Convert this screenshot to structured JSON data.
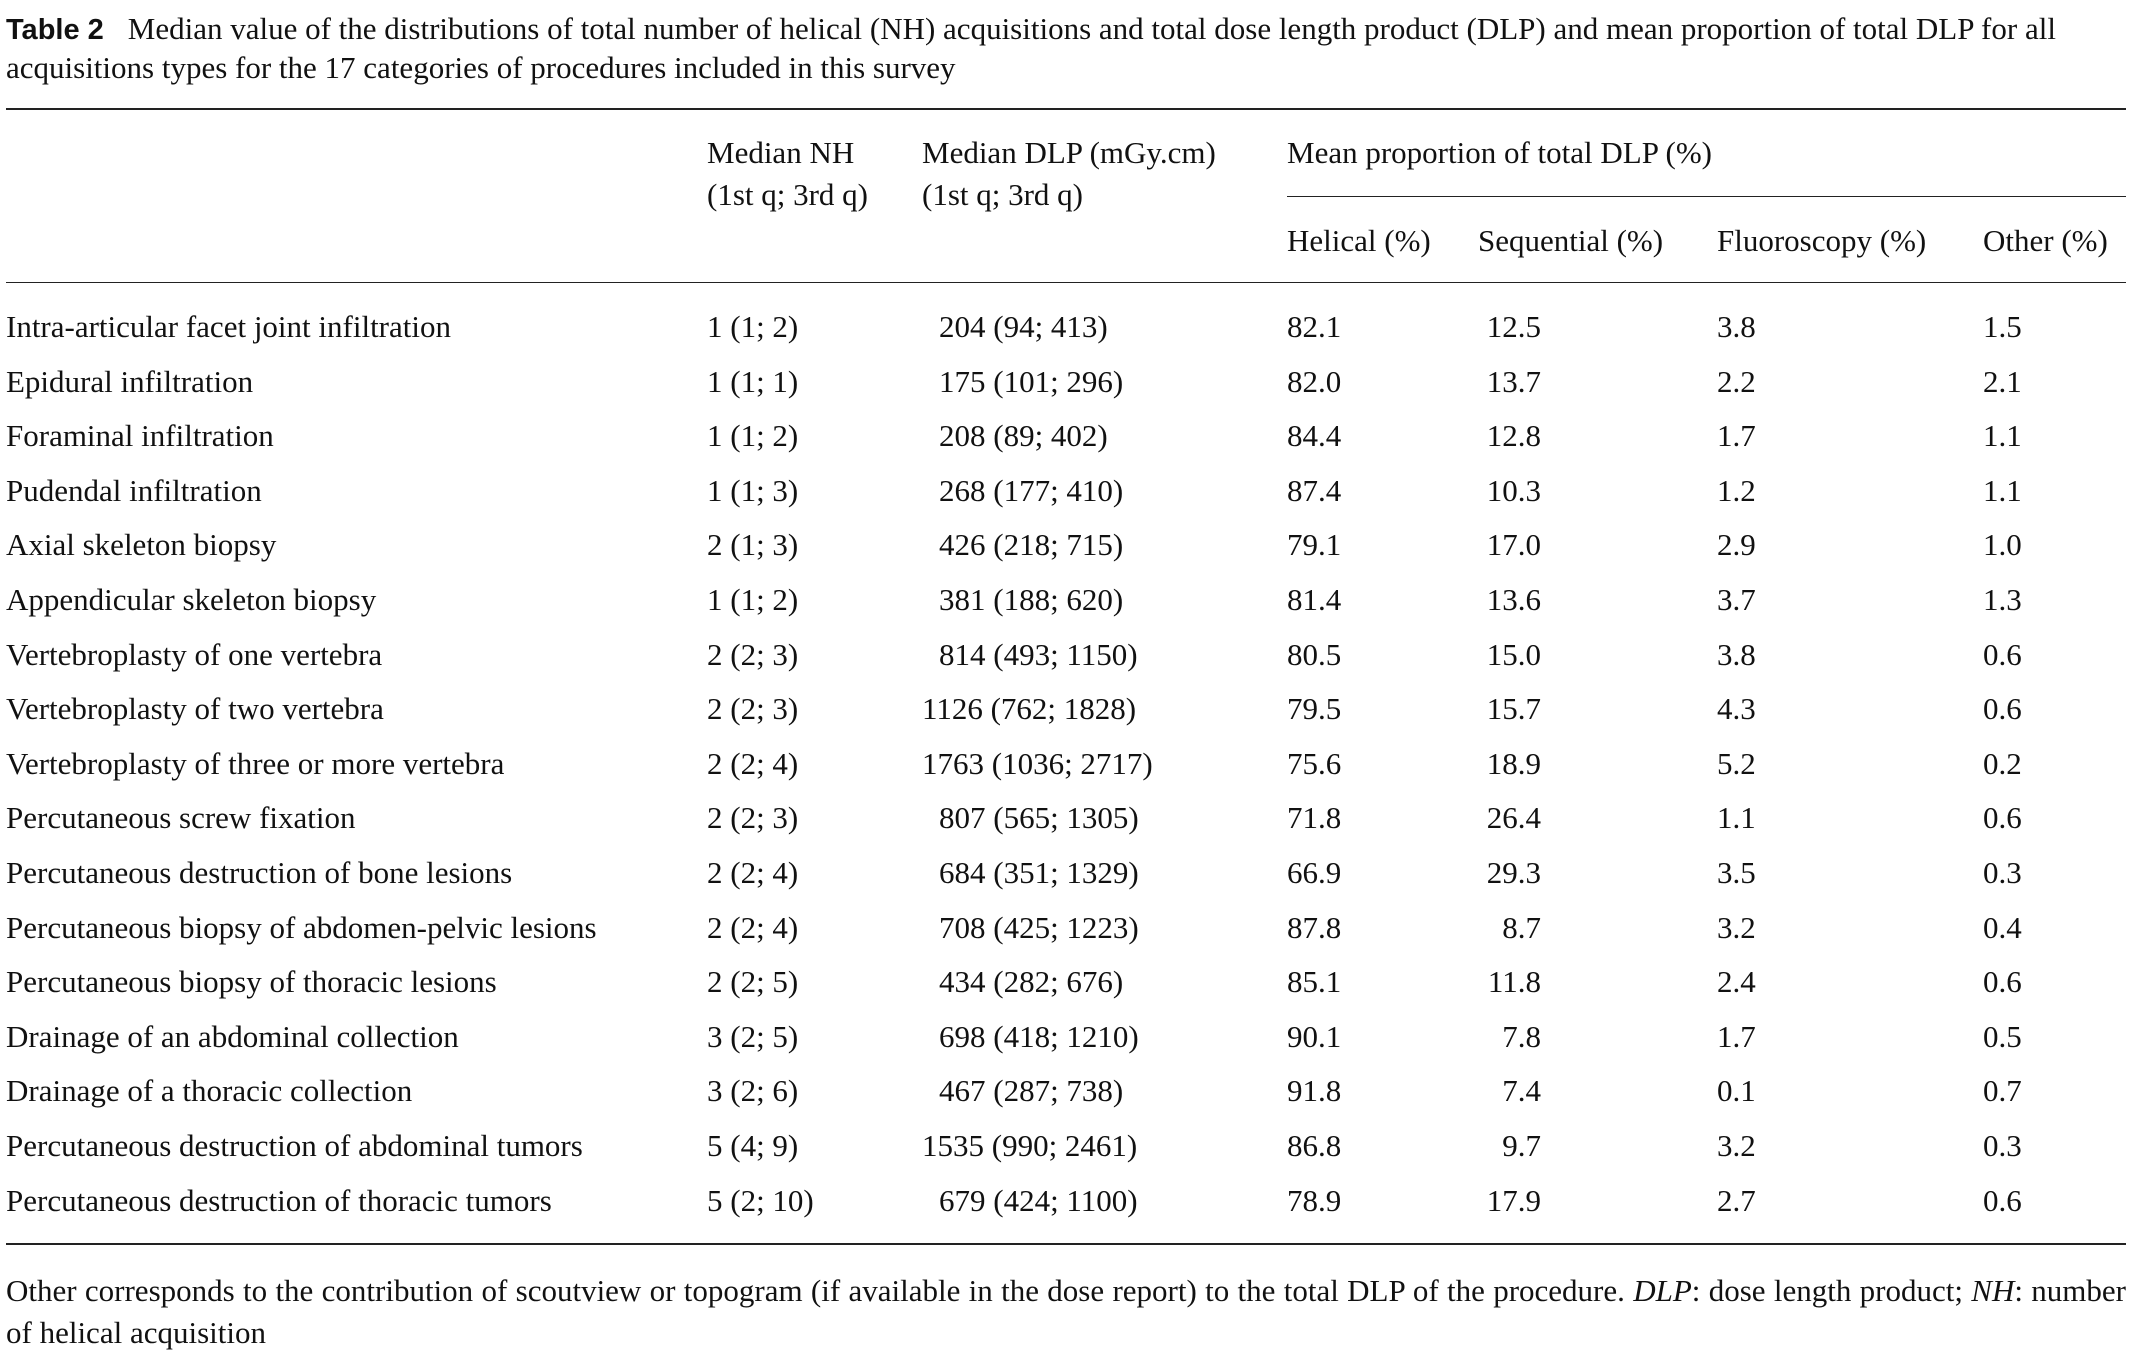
{
  "caption": {
    "label": "Table 2",
    "text": "Median value of the distributions of total number of helical (NH) acquisitions and total dose length product (DLP) and mean proportion of total DLP for all acquisitions types for the 17 categories of procedures included in this survey"
  },
  "headers": {
    "nh_line1": "Median NH",
    "nh_line2": "(1st q; 3rd q)",
    "dlp_line1": "Median DLP (mGy.cm)",
    "dlp_line2": "(1st q; 3rd q)",
    "group": "Mean proportion of total DLP (%)",
    "helical": "Helical (%)",
    "sequential": "Sequential (%)",
    "fluoroscopy": "Fluoroscopy (%)",
    "other": "Other (%)"
  },
  "rows": [
    {
      "procedure": "Intra-articular facet joint infiltration",
      "nh": "1 (1; 2)",
      "dlp": "204 (94; 413)",
      "helical": "82.1",
      "sequential": "12.5",
      "fluoroscopy": "3.8",
      "other": "1.5"
    },
    {
      "procedure": "Epidural infiltration",
      "nh": "1 (1; 1)",
      "dlp": "175 (101; 296)",
      "helical": "82.0",
      "sequential": "13.7",
      "fluoroscopy": "2.2",
      "other": "2.1"
    },
    {
      "procedure": "Foraminal infiltration",
      "nh": "1 (1; 2)",
      "dlp": "208 (89; 402)",
      "helical": "84.4",
      "sequential": "12.8",
      "fluoroscopy": "1.7",
      "other": "1.1"
    },
    {
      "procedure": "Pudendal infiltration",
      "nh": "1 (1; 3)",
      "dlp": "268 (177; 410)",
      "helical": "87.4",
      "sequential": "10.3",
      "fluoroscopy": "1.2",
      "other": "1.1"
    },
    {
      "procedure": "Axial skeleton biopsy",
      "nh": "2 (1; 3)",
      "dlp": "426 (218; 715)",
      "helical": "79.1",
      "sequential": "17.0",
      "fluoroscopy": "2.9",
      "other": "1.0"
    },
    {
      "procedure": "Appendicular skeleton biopsy",
      "nh": "1 (1; 2)",
      "dlp": "381 (188; 620)",
      "helical": "81.4",
      "sequential": "13.6",
      "fluoroscopy": "3.7",
      "other": "1.3"
    },
    {
      "procedure": "Vertebroplasty of one vertebra",
      "nh": "2 (2; 3)",
      "dlp": "814 (493; 1150)",
      "helical": "80.5",
      "sequential": "15.0",
      "fluoroscopy": "3.8",
      "other": "0.6"
    },
    {
      "procedure": "Vertebroplasty of two vertebra",
      "nh": "2 (2; 3)",
      "dlp": "1126 (762; 1828)",
      "helical": "79.5",
      "sequential": "15.7",
      "fluoroscopy": "4.3",
      "other": "0.6"
    },
    {
      "procedure": "Vertebroplasty of three or more vertebra",
      "nh": "2 (2; 4)",
      "dlp": "1763 (1036; 2717)",
      "helical": "75.6",
      "sequential": "18.9",
      "fluoroscopy": "5.2",
      "other": "0.2"
    },
    {
      "procedure": "Percutaneous screw fixation",
      "nh": "2 (2; 3)",
      "dlp": "807 (565; 1305)",
      "helical": "71.8",
      "sequential": "26.4",
      "fluoroscopy": "1.1",
      "other": "0.6"
    },
    {
      "procedure": "Percutaneous destruction of bone lesions",
      "nh": "2 (2; 4)",
      "dlp": "684 (351; 1329)",
      "helical": "66.9",
      "sequential": "29.3",
      "fluoroscopy": "3.5",
      "other": "0.3"
    },
    {
      "procedure": "Percutaneous biopsy of abdomen-pelvic lesions",
      "nh": "2 (2; 4)",
      "dlp": "708 (425; 1223)",
      "helical": "87.8",
      "sequential": "8.7",
      "fluoroscopy": "3.2",
      "other": "0.4"
    },
    {
      "procedure": "Percutaneous biopsy of thoracic lesions",
      "nh": "2 (2; 5)",
      "dlp": "434 (282; 676)",
      "helical": "85.1",
      "sequential": "11.8",
      "fluoroscopy": "2.4",
      "other": "0.6"
    },
    {
      "procedure": "Drainage of an abdominal collection",
      "nh": "3 (2; 5)",
      "dlp": "698 (418; 1210)",
      "helical": "90.1",
      "sequential": "7.8",
      "fluoroscopy": "1.7",
      "other": "0.5"
    },
    {
      "procedure": "Drainage of a thoracic collection",
      "nh": "3 (2; 6)",
      "dlp": "467 (287; 738)",
      "helical": "91.8",
      "sequential": "7.4",
      "fluoroscopy": "0.1",
      "other": "0.7"
    },
    {
      "procedure": "Percutaneous destruction of abdominal tumors",
      "nh": "5 (4; 9)",
      "dlp": "1535 (990; 2461)",
      "helical": "86.8",
      "sequential": "9.7",
      "fluoroscopy": "3.2",
      "other": "0.3"
    },
    {
      "procedure": "Percutaneous destruction of thoracic tumors",
      "nh": "5 (2; 10)",
      "dlp": "679 (424; 1100)",
      "helical": "78.9",
      "sequential": "17.9",
      "fluoroscopy": "2.7",
      "other": "0.6"
    }
  ],
  "footnote": {
    "part1": "Other corresponds to the contribution of scoutview or topogram (if available in the dose report) to the total DLP of the procedure. ",
    "dlp_abbr": "DLP",
    "part2": ": dose length product; ",
    "nh_abbr": "NH",
    "part3": ": number of helical acquisition"
  }
}
